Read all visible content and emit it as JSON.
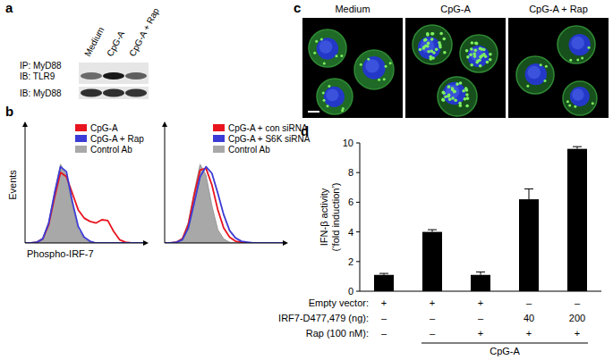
{
  "figure": {
    "a": {
      "label": "a",
      "lanes": [
        "Medium",
        "CpG-A",
        "CpG-A + Rap"
      ],
      "ip_label": "IP: MyD88",
      "blots": [
        {
          "label": "IB: TLR9",
          "intensity": [
            0.55,
            0.9,
            0.6
          ]
        },
        {
          "label": "IB: MyD88",
          "intensity": [
            0.8,
            0.8,
            0.78
          ]
        }
      ]
    },
    "c": {
      "label": "c",
      "titles": [
        "Medium",
        "CpG-A",
        "CpG-A + Rap"
      ]
    }
  },
  "chart_data": [
    {
      "type": "area",
      "panel_label": "b",
      "ylabel": "Events",
      "xlabel": "Phospho-IRF-7",
      "x": [
        0,
        5,
        10,
        15,
        20,
        25,
        30,
        35,
        40,
        45,
        50,
        55,
        60,
        65,
        70,
        75,
        80,
        85,
        90,
        95,
        100
      ],
      "xlim": [
        0,
        100
      ],
      "ylim": [
        0,
        140
      ],
      "tick_labels": false,
      "legend": "top-right",
      "series": [
        {
          "name": "CpG-A",
          "color": "#e8141e",
          "type": "line",
          "values": [
            0,
            0,
            1,
            5,
            22,
            55,
            85,
            80,
            60,
            40,
            30,
            26,
            24,
            28,
            27,
            14,
            4,
            1,
            0,
            0,
            0
          ]
        },
        {
          "name": "CpG-A + Rap",
          "color": "#3b3bd6",
          "type": "line",
          "values": [
            0,
            0,
            1,
            5,
            24,
            60,
            92,
            86,
            50,
            20,
            7,
            2,
            0,
            0,
            0,
            0,
            0,
            0,
            0,
            0,
            0
          ]
        },
        {
          "name": "Control Ab",
          "color": "#a8a8a8",
          "type": "area",
          "values": [
            0,
            0,
            1,
            6,
            25,
            62,
            95,
            82,
            45,
            16,
            5,
            1,
            0,
            0,
            0,
            0,
            0,
            0,
            0,
            0,
            0
          ]
        }
      ]
    },
    {
      "type": "area",
      "x": [
        0,
        5,
        10,
        15,
        20,
        25,
        30,
        35,
        40,
        45,
        50,
        55,
        60,
        65,
        70,
        75,
        80,
        85,
        90,
        95,
        100
      ],
      "xlim": [
        0,
        100
      ],
      "ylim": [
        0,
        140
      ],
      "tick_labels": false,
      "legend": "top-right",
      "series": [
        {
          "name": "CpG-A + con siRNA",
          "color": "#e8141e",
          "type": "line",
          "values": [
            0,
            0,
            1,
            5,
            22,
            58,
            88,
            90,
            70,
            40,
            18,
            7,
            2,
            1,
            0,
            0,
            0,
            0,
            0,
            0,
            0
          ]
        },
        {
          "name": "CpG-A + S6K siRNA",
          "color": "#3b3bd6",
          "type": "line",
          "values": [
            0,
            0,
            1,
            4,
            18,
            48,
            80,
            92,
            84,
            60,
            34,
            15,
            6,
            2,
            1,
            0,
            0,
            0,
            0,
            0,
            0
          ]
        },
        {
          "name": "Control Ab",
          "color": "#a8a8a8",
          "type": "area",
          "values": [
            0,
            0,
            1,
            6,
            25,
            62,
            95,
            82,
            45,
            16,
            5,
            1,
            0,
            0,
            0,
            0,
            0,
            0,
            0,
            0,
            0
          ]
        }
      ]
    },
    {
      "type": "bar",
      "panel_label": "d",
      "ylabel": [
        "IFN-β activity",
        "(‘fold induction’)"
      ],
      "categories": [
        null,
        null,
        null,
        null,
        null
      ],
      "values": [
        1.1,
        4.0,
        1.1,
        6.2,
        9.6
      ],
      "error": [
        0.1,
        0.15,
        0.2,
        0.7,
        0.15
      ],
      "color": "#000000",
      "ylim": [
        0,
        10
      ],
      "yticks": [
        0,
        2,
        4,
        6,
        8,
        10
      ],
      "conditions": [
        {
          "label": "Empty vector:",
          "values": [
            "+",
            "+",
            "+",
            "–",
            "–"
          ]
        },
        {
          "label": "IRF7-D477,479 (ng):",
          "values": [
            "–",
            "–",
            "–",
            "40",
            "200"
          ]
        },
        {
          "label": "Rap (100 nM):",
          "values": [
            "–",
            "–",
            "+",
            "+",
            "+"
          ]
        }
      ],
      "treatment": {
        "label": "CpG-A",
        "applies": [
          false,
          true,
          true,
          true,
          true
        ]
      }
    }
  ]
}
